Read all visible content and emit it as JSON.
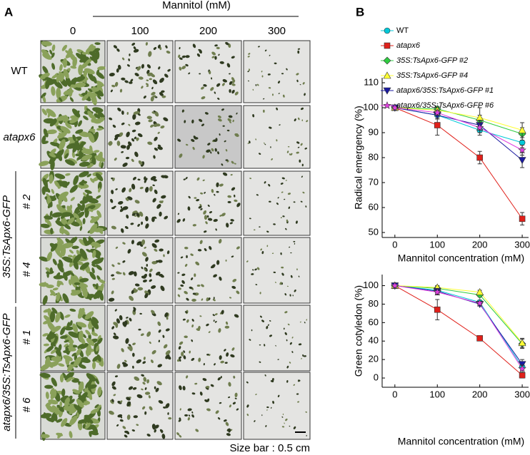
{
  "panel_a": {
    "panel_label": "A",
    "title": "Mannitol (mM)",
    "columns": [
      "0",
      "100",
      "200",
      "300"
    ],
    "rows": [
      "WT",
      "atapx6"
    ],
    "groups": [
      {
        "label": "35S:TsApx6-GFP",
        "lines": [
          "# 2",
          "# 4"
        ]
      },
      {
        "label": "atapx6/35S:TsApx6-GFP",
        "lines": [
          "# 1",
          "# 6"
        ]
      }
    ],
    "scale_note": "Size bar : 0.5 cm"
  },
  "panel_b": {
    "panel_label": "B"
  },
  "chart_data": [
    {
      "type": "line",
      "xlabel": "Mannitol concentration (mM)",
      "ylabel": "Radical emergency (%)",
      "x": [
        0,
        100,
        200,
        300
      ],
      "xlim": [
        -30,
        315
      ],
      "xticks": [
        0,
        100,
        200,
        300
      ],
      "ylim": [
        48,
        112
      ],
      "yticks": [
        50,
        60,
        70,
        80,
        90,
        100,
        110
      ],
      "series": [
        {
          "name": "WT",
          "color": "#00c8d8",
          "marker": "circle",
          "values": [
            100,
            97,
            91,
            86
          ],
          "errors": [
            0,
            1.5,
            2,
            2
          ]
        },
        {
          "name": "atapx6",
          "color": "#e0201a",
          "marker": "square",
          "values": [
            100,
            93,
            80,
            55.5
          ],
          "errors": [
            0,
            4,
            2.5,
            2.5
          ]
        },
        {
          "name": "35S:TsApx6-GFP #2",
          "color": "#2ecc40",
          "marker": "diamond",
          "values": [
            100,
            99.5,
            95,
            89.5
          ],
          "errors": [
            0,
            1,
            2,
            2.5
          ]
        },
        {
          "name": "35S:TsApx6-GFP #4",
          "color": "#ffff33",
          "marker": "triangle-up",
          "values": [
            100,
            99,
            96,
            91
          ],
          "errors": [
            0,
            1,
            4,
            3
          ]
        },
        {
          "name": "atapx6/35S:TsApx6-GFP #1",
          "color": "#1a1aa0",
          "marker": "triangle-down",
          "values": [
            100,
            97,
            93,
            79
          ],
          "errors": [
            0,
            1.5,
            2,
            3
          ]
        },
        {
          "name": "atapx6/35S:TsApx6-GFP #6",
          "color": "#e040e0",
          "marker": "star",
          "values": [
            100,
            98,
            92,
            83
          ],
          "errors": [
            0,
            1,
            2,
            2
          ]
        }
      ]
    },
    {
      "type": "line",
      "xlabel": "Mannitol concentration (mM)",
      "ylabel": "Green cotyledon (%)",
      "x": [
        0,
        100,
        200,
        300
      ],
      "xlim": [
        -30,
        315
      ],
      "xticks": [
        0,
        100,
        200,
        300
      ],
      "ylim": [
        -10,
        112
      ],
      "yticks": [
        0,
        20,
        40,
        60,
        80,
        100
      ],
      "series": [
        {
          "color": "#00c8d8",
          "marker": "circle",
          "values": [
            100,
            95,
            82,
            12
          ],
          "errors": [
            0,
            3,
            2,
            4
          ]
        },
        {
          "color": "#e0201a",
          "marker": "square",
          "values": [
            100,
            74,
            43,
            3
          ],
          "errors": [
            0,
            11,
            1,
            3
          ]
        },
        {
          "color": "#2ecc40",
          "marker": "diamond",
          "values": [
            100,
            97,
            90,
            37
          ],
          "errors": [
            0,
            2,
            2,
            5
          ]
        },
        {
          "color": "#ffff33",
          "marker": "triangle-up",
          "values": [
            100,
            98,
            93,
            38
          ],
          "errors": [
            0,
            2,
            2,
            5
          ]
        },
        {
          "color": "#1a1aa0",
          "marker": "triangle-down",
          "values": [
            100,
            94,
            80,
            15
          ],
          "errors": [
            0,
            3,
            2,
            5
          ]
        },
        {
          "color": "#e040e0",
          "marker": "star",
          "values": [
            100,
            93,
            81,
            10
          ],
          "errors": [
            0,
            3,
            2,
            4
          ]
        }
      ]
    }
  ]
}
